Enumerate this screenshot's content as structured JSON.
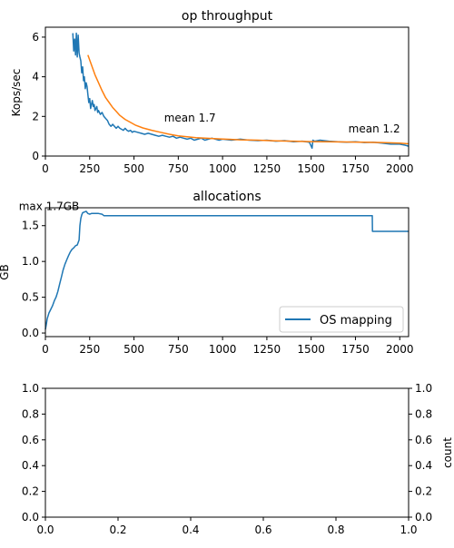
{
  "colors": {
    "blue": "#1f77b4",
    "orange": "#ff7f0e",
    "axis": "#000000",
    "legend_border": "#cccccc"
  },
  "chart_data": [
    {
      "type": "line",
      "title": "op throughput",
      "xlabel": "",
      "ylabel": "Kops/sec",
      "xlim": [
        0,
        2050
      ],
      "ylim": [
        0,
        6.5
      ],
      "xticks": [
        0,
        250,
        500,
        750,
        1000,
        1250,
        1500,
        1750,
        2000
      ],
      "yticks": [
        0,
        2,
        4,
        6
      ],
      "annotations": [
        {
          "text": "mean 1.7",
          "x": 670,
          "y": 1.75
        },
        {
          "text": "mean 1.2",
          "x": 1710,
          "y": 1.2
        }
      ],
      "series": [
        {
          "color": "blue",
          "x": [
            155,
            160,
            165,
            170,
            175,
            180,
            185,
            190,
            195,
            200,
            205,
            210,
            215,
            220,
            225,
            230,
            235,
            240,
            245,
            250,
            255,
            260,
            265,
            270,
            275,
            280,
            285,
            290,
            295,
            300,
            310,
            320,
            330,
            340,
            350,
            360,
            370,
            380,
            390,
            400,
            410,
            420,
            430,
            440,
            450,
            460,
            470,
            480,
            490,
            500,
            520,
            540,
            560,
            580,
            600,
            620,
            640,
            660,
            680,
            700,
            720,
            740,
            760,
            780,
            800,
            820,
            840,
            860,
            880,
            900,
            920,
            940,
            960,
            980,
            1000,
            1050,
            1100,
            1150,
            1200,
            1250,
            1300,
            1350,
            1400,
            1450,
            1490,
            1500,
            1505,
            1510,
            1520,
            1550,
            1600,
            1650,
            1700,
            1750,
            1800,
            1850,
            1900,
            1950,
            2000,
            2030,
            2050
          ],
          "y": [
            6.2,
            5.3,
            5.9,
            5.1,
            6.2,
            5.0,
            6.1,
            5.2,
            5.0,
            4.8,
            4.2,
            4.5,
            3.8,
            4.0,
            3.4,
            3.7,
            3.5,
            3.1,
            2.7,
            2.9,
            2.4,
            2.6,
            2.8,
            2.5,
            2.6,
            2.3,
            2.4,
            2.5,
            2.2,
            2.3,
            2.1,
            2.2,
            2.0,
            1.9,
            1.8,
            1.6,
            1.5,
            1.6,
            1.5,
            1.4,
            1.5,
            1.4,
            1.35,
            1.3,
            1.4,
            1.3,
            1.25,
            1.3,
            1.2,
            1.25,
            1.2,
            1.15,
            1.1,
            1.15,
            1.1,
            1.05,
            1.0,
            1.05,
            1.0,
            0.95,
            1.0,
            0.9,
            0.95,
            0.9,
            0.85,
            0.9,
            0.8,
            0.85,
            0.9,
            0.8,
            0.85,
            0.9,
            0.85,
            0.8,
            0.85,
            0.8,
            0.85,
            0.8,
            0.78,
            0.8,
            0.75,
            0.78,
            0.72,
            0.75,
            0.7,
            0.5,
            0.4,
            0.8,
            0.75,
            0.8,
            0.75,
            0.72,
            0.7,
            0.72,
            0.68,
            0.7,
            0.65,
            0.6,
            0.6,
            0.55,
            0.5
          ]
        },
        {
          "color": "orange",
          "x": [
            240,
            260,
            280,
            300,
            320,
            340,
            360,
            380,
            400,
            420,
            450,
            480,
            510,
            550,
            600,
            650,
            700,
            750,
            800,
            850,
            900,
            950,
            1000,
            1100,
            1200,
            1300,
            1400,
            1500,
            1600,
            1700,
            1800,
            1900,
            2000,
            2050
          ],
          "y": [
            5.1,
            4.6,
            4.1,
            3.7,
            3.3,
            2.95,
            2.7,
            2.45,
            2.25,
            2.05,
            1.85,
            1.7,
            1.55,
            1.42,
            1.3,
            1.2,
            1.1,
            1.02,
            0.97,
            0.93,
            0.9,
            0.88,
            0.86,
            0.82,
            0.8,
            0.77,
            0.75,
            0.73,
            0.72,
            0.71,
            0.7,
            0.68,
            0.65,
            0.62
          ]
        }
      ]
    },
    {
      "type": "line",
      "title": "allocations",
      "xlabel": "",
      "ylabel": "GB",
      "xlim": [
        0,
        2050
      ],
      "ylim": [
        -0.05,
        1.75
      ],
      "xticks": [
        0,
        250,
        500,
        750,
        1000,
        1250,
        1500,
        1750,
        2000
      ],
      "yticks": [
        0.0,
        0.5,
        1.0,
        1.5
      ],
      "ytick_labels": [
        "0.0",
        "0.5",
        "1.0",
        "1.5"
      ],
      "annotations": [
        {
          "text": "max 1.7GB",
          "x": -150,
          "y": 1.72
        }
      ],
      "legend": {
        "placement": "lower-right"
      },
      "series": [
        {
          "name": "OS mapping",
          "color": "blue",
          "x": [
            0,
            5,
            10,
            20,
            30,
            40,
            50,
            60,
            70,
            80,
            90,
            100,
            110,
            120,
            130,
            140,
            150,
            160,
            170,
            180,
            190,
            195,
            200,
            205,
            210,
            220,
            230,
            240,
            250,
            260,
            300,
            320,
            330,
            1845,
            1846,
            2050
          ],
          "y": [
            0.05,
            0.12,
            0.2,
            0.28,
            0.33,
            0.38,
            0.45,
            0.5,
            0.58,
            0.68,
            0.78,
            0.88,
            0.96,
            1.02,
            1.08,
            1.13,
            1.17,
            1.19,
            1.22,
            1.23,
            1.3,
            1.5,
            1.6,
            1.65,
            1.68,
            1.69,
            1.7,
            1.67,
            1.66,
            1.67,
            1.67,
            1.66,
            1.64,
            1.64,
            1.42,
            1.42
          ]
        }
      ]
    },
    {
      "type": "line",
      "title": "",
      "xlabel": "",
      "ylabel": "",
      "ylabel_right": "count",
      "xlim": [
        0,
        1
      ],
      "ylim": [
        0,
        1
      ],
      "xticks": [
        0.0,
        0.2,
        0.4,
        0.6,
        0.8,
        1.0
      ],
      "xtick_labels": [
        "0.0",
        "0.2",
        "0.4",
        "0.6",
        "0.8",
        "1.0"
      ],
      "yticks": [
        0.0,
        0.2,
        0.4,
        0.6,
        0.8,
        1.0
      ],
      "ytick_labels": [
        "0.0",
        "0.2",
        "0.4",
        "0.6",
        "0.8",
        "1.0"
      ],
      "series": []
    }
  ]
}
